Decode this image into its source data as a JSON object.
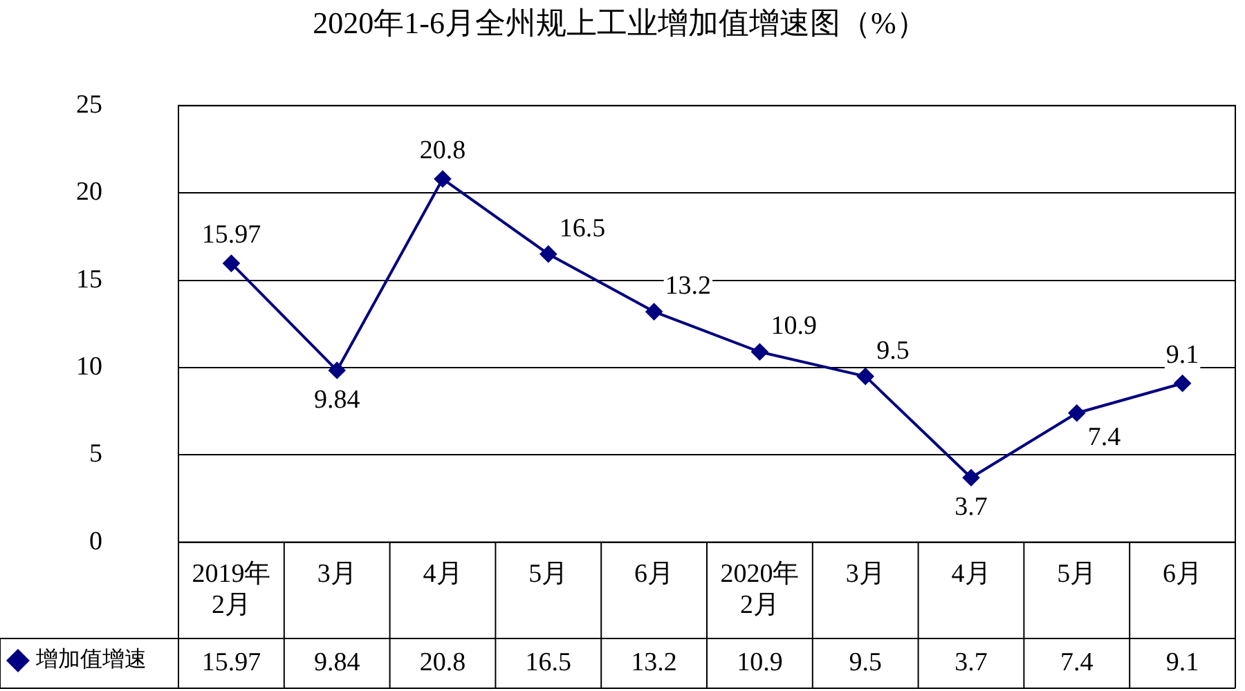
{
  "chart_data": {
    "type": "line",
    "title": "2020年1-6月全州规上工业增加值增速图（%）",
    "categories": [
      "2019年\n2月",
      "3月",
      "4月",
      "5月",
      "6月",
      "2020年\n2月",
      "3月",
      "4月",
      "5月",
      "6月"
    ],
    "series": [
      {
        "name": "增加值增速",
        "color": "#000080",
        "values": [
          15.97,
          9.84,
          20.8,
          16.5,
          13.2,
          10.9,
          9.5,
          3.7,
          7.4,
          9.1
        ]
      }
    ],
    "annotations": [
      "15.97",
      "9.84",
      "20.8",
      "16.5",
      "13.2",
      "10.9",
      "9.5",
      "3.7",
      "7.4",
      "9.1"
    ],
    "ylim": [
      0,
      25
    ],
    "yticks": [
      0,
      5,
      10,
      15,
      20,
      25
    ],
    "grid": "y",
    "marker": "diamond",
    "legend": "bottom left",
    "data_labels": true
  }
}
